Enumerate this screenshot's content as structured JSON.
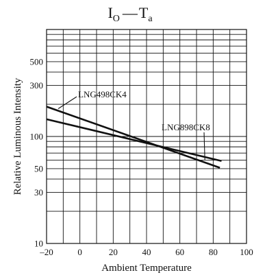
{
  "title": {
    "left_main": "I",
    "left_sub": "O",
    "dash": "—",
    "right_main": "T",
    "right_sub": "a"
  },
  "chart_data": {
    "type": "line",
    "title": "IO — Ta",
    "xlabel": "Ambient Temperature",
    "ylabel": "Relative Luminous Intensity",
    "xlim": [
      -20,
      100
    ],
    "ylim": [
      10,
      1000
    ],
    "yscale": "log",
    "x_ticks": [
      -20,
      0,
      20,
      40,
      60,
      80,
      100
    ],
    "x_tick_labels": [
      "–20",
      "0",
      "20",
      "40",
      "60",
      "80",
      "100"
    ],
    "y_ticks": [
      10,
      30,
      50,
      100,
      300,
      500
    ],
    "y_tick_labels": [
      "10",
      "30",
      "50",
      "100",
      "300",
      "500"
    ],
    "grid": true,
    "series": [
      {
        "name": "LNG498CK4",
        "x": [
          -20,
          84
        ],
        "y": [
          190,
          51
        ]
      },
      {
        "name": "LNG898CK8",
        "x": [
          -20,
          85
        ],
        "y": [
          145,
          59
        ]
      }
    ]
  }
}
